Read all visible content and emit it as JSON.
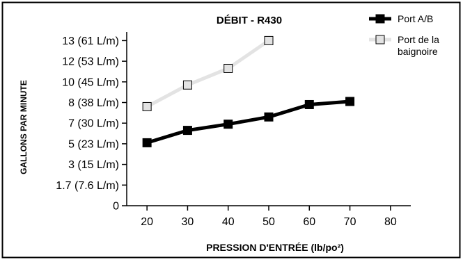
{
  "chart_data": {
    "type": "line",
    "title": "DÉBIT - R430",
    "xlabel": "PRESSION D'ENTRÉE (lb/po²)",
    "ylabel": "GALLONS PAR MINUTE",
    "x_ticks": [
      20,
      30,
      40,
      50,
      60,
      70,
      80
    ],
    "y_ticks": [
      "0",
      "1.7 (7.6 L/m)",
      "3 (15 L/m)",
      "5 (23 L/m)",
      "7 (30 L/m)",
      "8 (38 L/m)",
      "10 (45 L/m)",
      "12 (53 L/m)",
      "13 (61 L/m)"
    ],
    "y_tick_values": [
      0,
      1.7,
      3,
      5,
      7,
      8,
      10,
      12,
      13
    ],
    "xlim": [
      15,
      85
    ],
    "ylim": [
      0,
      14
    ],
    "legend_position": "top-right",
    "series": [
      {
        "name": "Port A/B",
        "x": [
          20,
          30,
          40,
          50,
          60,
          70
        ],
        "y": [
          5.1,
          6.3,
          6.9,
          7.3,
          7.9,
          8.1
        ],
        "color": "#000000",
        "marker_fill": "#000000"
      },
      {
        "name": "Port de la baignoire",
        "legend_lines": [
          "Port de la",
          "baignoire"
        ],
        "x": [
          20,
          30,
          40,
          50
        ],
        "y": [
          7.8,
          9.7,
          11.3,
          13.0
        ],
        "color": "#e3e3e3",
        "marker_fill": "#e3e3e3"
      }
    ]
  }
}
